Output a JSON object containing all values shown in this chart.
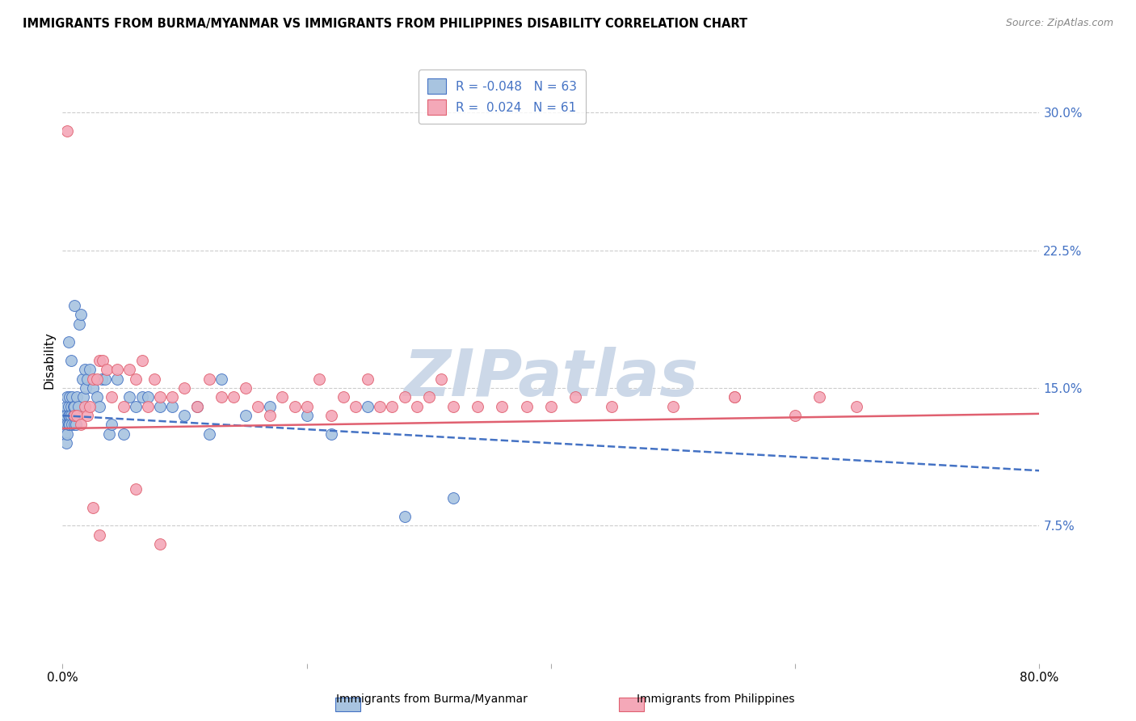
{
  "title": "IMMIGRANTS FROM BURMA/MYANMAR VS IMMIGRANTS FROM PHILIPPINES DISABILITY CORRELATION CHART",
  "source": "Source: ZipAtlas.com",
  "ylabel": "Disability",
  "ytick_labels": [
    "7.5%",
    "15.0%",
    "22.5%",
    "30.0%"
  ],
  "ytick_values": [
    0.075,
    0.15,
    0.225,
    0.3
  ],
  "xlim": [
    0.0,
    0.8
  ],
  "ylim": [
    0.0,
    0.33
  ],
  "color_burma": "#a8c4e0",
  "color_phil": "#f4a8b8",
  "trendline_burma_color": "#4472c4",
  "trendline_phil_color": "#e06070",
  "watermark_color": "#ccd8e8",
  "legend_text_color": "#4472c4",
  "burma_x": [
    0.001,
    0.002,
    0.002,
    0.003,
    0.003,
    0.003,
    0.004,
    0.004,
    0.004,
    0.005,
    0.005,
    0.005,
    0.006,
    0.006,
    0.006,
    0.007,
    0.007,
    0.008,
    0.008,
    0.009,
    0.009,
    0.01,
    0.01,
    0.011,
    0.012,
    0.013,
    0.014,
    0.015,
    0.016,
    0.017,
    0.018,
    0.019,
    0.02,
    0.022,
    0.025,
    0.028,
    0.03,
    0.032,
    0.035,
    0.038,
    0.04,
    0.045,
    0.05,
    0.055,
    0.06,
    0.065,
    0.07,
    0.08,
    0.09,
    0.1,
    0.11,
    0.12,
    0.13,
    0.15,
    0.17,
    0.2,
    0.22,
    0.25,
    0.28,
    0.32,
    0.005,
    0.007,
    0.01
  ],
  "burma_y": [
    0.135,
    0.13,
    0.125,
    0.14,
    0.135,
    0.12,
    0.13,
    0.125,
    0.145,
    0.14,
    0.135,
    0.13,
    0.145,
    0.135,
    0.13,
    0.14,
    0.135,
    0.145,
    0.13,
    0.14,
    0.135,
    0.14,
    0.13,
    0.13,
    0.145,
    0.14,
    0.185,
    0.19,
    0.155,
    0.145,
    0.16,
    0.15,
    0.155,
    0.16,
    0.15,
    0.145,
    0.14,
    0.155,
    0.155,
    0.125,
    0.13,
    0.155,
    0.125,
    0.145,
    0.14,
    0.145,
    0.145,
    0.14,
    0.14,
    0.135,
    0.14,
    0.125,
    0.155,
    0.135,
    0.14,
    0.135,
    0.125,
    0.14,
    0.08,
    0.09,
    0.175,
    0.165,
    0.195
  ],
  "phil_x": [
    0.004,
    0.01,
    0.012,
    0.015,
    0.018,
    0.02,
    0.022,
    0.025,
    0.028,
    0.03,
    0.033,
    0.036,
    0.04,
    0.045,
    0.05,
    0.055,
    0.06,
    0.065,
    0.07,
    0.075,
    0.08,
    0.09,
    0.1,
    0.11,
    0.12,
    0.13,
    0.14,
    0.15,
    0.16,
    0.17,
    0.18,
    0.19,
    0.2,
    0.21,
    0.22,
    0.23,
    0.24,
    0.25,
    0.26,
    0.27,
    0.28,
    0.29,
    0.3,
    0.31,
    0.32,
    0.34,
    0.36,
    0.38,
    0.4,
    0.42,
    0.45,
    0.5,
    0.55,
    0.6,
    0.65,
    0.55,
    0.62,
    0.025,
    0.03,
    0.06,
    0.08
  ],
  "phil_y": [
    0.29,
    0.135,
    0.135,
    0.13,
    0.14,
    0.135,
    0.14,
    0.155,
    0.155,
    0.165,
    0.165,
    0.16,
    0.145,
    0.16,
    0.14,
    0.16,
    0.155,
    0.165,
    0.14,
    0.155,
    0.145,
    0.145,
    0.15,
    0.14,
    0.155,
    0.145,
    0.145,
    0.15,
    0.14,
    0.135,
    0.145,
    0.14,
    0.14,
    0.155,
    0.135,
    0.145,
    0.14,
    0.155,
    0.14,
    0.14,
    0.145,
    0.14,
    0.145,
    0.155,
    0.14,
    0.14,
    0.14,
    0.14,
    0.14,
    0.145,
    0.14,
    0.14,
    0.145,
    0.135,
    0.14,
    0.145,
    0.145,
    0.085,
    0.07,
    0.095,
    0.065
  ],
  "trendline_burma_x0": 0.0,
  "trendline_burma_x1": 0.8,
  "trendline_burma_y0": 0.135,
  "trendline_burma_y1": 0.105,
  "trendline_phil_x0": 0.0,
  "trendline_phil_x1": 0.8,
  "trendline_phil_y0": 0.128,
  "trendline_phil_y1": 0.136
}
